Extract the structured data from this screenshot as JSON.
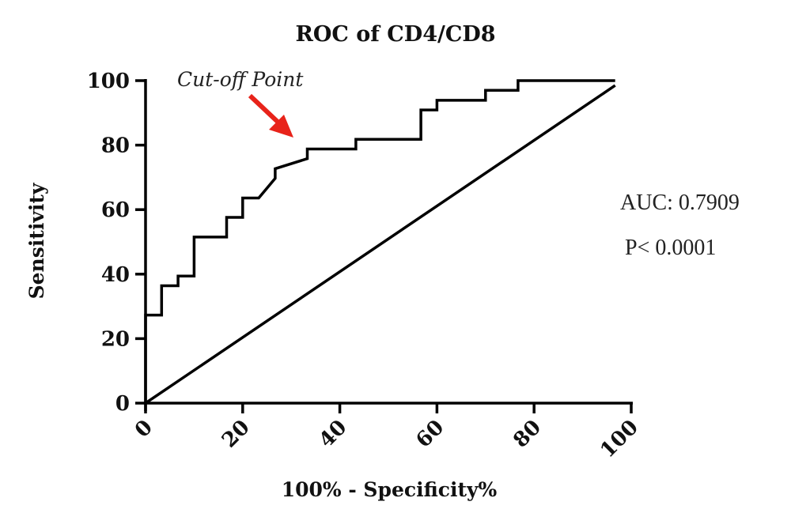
{
  "chart_data": {
    "type": "line",
    "title": "ROC of CD4/CD8",
    "xlabel": "100% - Specificity%",
    "ylabel": "Sensitivity",
    "xlim": [
      0,
      100
    ],
    "ylim": [
      0,
      100
    ],
    "xticks": [
      "0",
      "20",
      "40",
      "60",
      "80",
      "100"
    ],
    "yticks": [
      "0",
      "20",
      "40",
      "60",
      "80",
      "100"
    ],
    "series": [
      {
        "name": "",
        "color": "#000000",
        "x": [
          0,
          0,
          3.3,
          3.3,
          6.7,
          6.7,
          10,
          10,
          16.7,
          16.7,
          20,
          20,
          23.3,
          26.7,
          26.7,
          33.3,
          33.3,
          43.3,
          43.3,
          56.7,
          56.7,
          60,
          60,
          70,
          70,
          76.7,
          76.7,
          96.7
        ],
        "y": [
          0,
          27.3,
          27.3,
          36.4,
          36.4,
          39.4,
          39.4,
          51.5,
          51.5,
          57.6,
          57.6,
          63.6,
          63.6,
          69.7,
          72.7,
          75.8,
          78.8,
          78.8,
          81.8,
          81.8,
          90.9,
          90.9,
          93.9,
          93.9,
          97,
          97,
          100,
          100
        ]
      },
      {
        "name": "",
        "color": "#000000",
        "x": [
          0,
          96.7
        ],
        "y": [
          0,
          98.5
        ]
      }
    ],
    "annotations": {
      "cutoff_label": "Cut-off Point",
      "cutoff_arrow_color": "#e8231a",
      "auc": "AUC: 0.7909",
      "p_value": "P< 0.0001"
    },
    "grid": false,
    "legend": "none"
  }
}
